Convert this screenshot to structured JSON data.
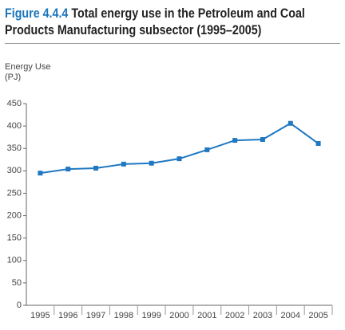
{
  "chart_data": {
    "type": "line",
    "figure_label": "Figure 4.4.4",
    "title": "Total energy use in the Petroleum and Coal Products Manufacturing subsector (1995–2005)",
    "ylabel": "Energy Use",
    "yunit": "(PJ)",
    "categories": [
      "1995",
      "1996",
      "1997",
      "1998",
      "1999",
      "2000",
      "2001",
      "2002",
      "2003",
      "2004",
      "2005"
    ],
    "values": [
      295,
      304,
      306,
      315,
      317,
      327,
      347,
      368,
      370,
      406,
      361
    ],
    "color": "#1f78c1",
    "ylim": [
      0,
      450
    ],
    "yticks": [
      0,
      50,
      100,
      150,
      200,
      250,
      300,
      350,
      400,
      450
    ],
    "grid": false
  }
}
